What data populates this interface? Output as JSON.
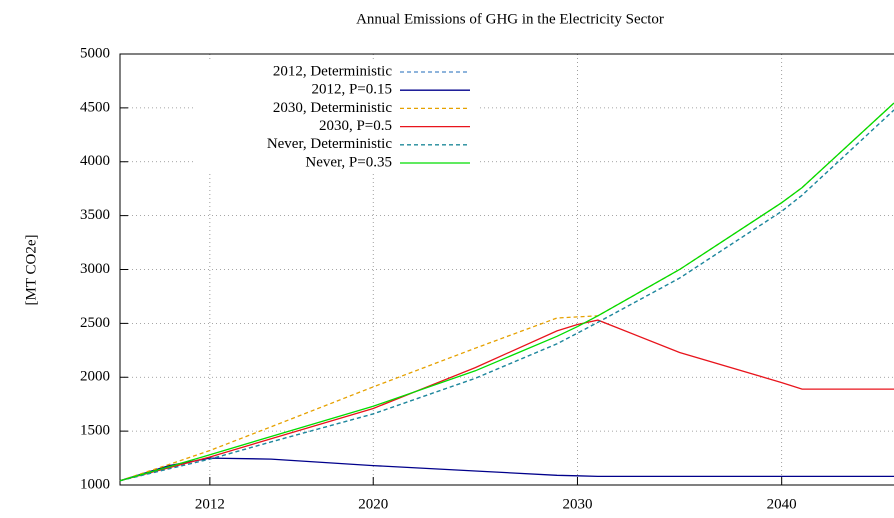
{
  "chart_data": {
    "type": "line",
    "title": "Annual Emissions of GHG in the Electricity Sector",
    "y_label": "[MT CO2e]",
    "x": [
      2007.6,
      2010,
      2012,
      2015,
      2020,
      2025,
      2029,
      2030,
      2031,
      2035,
      2040,
      2041,
      2045.5
    ],
    "xlim": [
      2007.6,
      2045.5
    ],
    "xticks": [
      2012,
      2020,
      2030,
      2040
    ],
    "ylim": [
      1000,
      5000
    ],
    "yticks": [
      1000,
      1500,
      2000,
      2500,
      3000,
      3500,
      4000,
      4500,
      5000
    ],
    "grid": true,
    "legend": "upper left",
    "series": [
      {
        "name": "2012, Deterministic",
        "color": "#4a86c8",
        "dashed": true,
        "values": [
          1040,
          1150,
          1240,
          1400,
          1660,
          1990,
          2310,
          2410,
          2510,
          2920,
          3540,
          3690,
          4480
        ]
      },
      {
        "name": "2012, P=0.15",
        "color": "#00008b",
        "dashed": false,
        "values": [
          1040,
          1180,
          1250,
          1240,
          1180,
          1130,
          1090,
          1085,
          1080,
          1080,
          1080,
          1080,
          1080
        ]
      },
      {
        "name": "2030, Deterministic",
        "color": "#e6a100",
        "dashed": true,
        "values": [
          1040,
          1190,
          1320,
          1540,
          1910,
          2270,
          2550,
          2560,
          2570,
          3000,
          3620,
          3760,
          4545
        ]
      },
      {
        "name": "2030, P=0.5",
        "color": "#e8141c",
        "dashed": false,
        "values": [
          1040,
          1160,
          1260,
          1430,
          1710,
          2090,
          2430,
          2490,
          2530,
          2230,
          1950,
          1890,
          1890
        ]
      },
      {
        "name": "Never, Deterministic",
        "color": "#1f8a9a",
        "dashed": true,
        "values": [
          1040,
          1150,
          1240,
          1400,
          1660,
          1990,
          2310,
          2410,
          2510,
          2920,
          3540,
          3690,
          4480
        ]
      },
      {
        "name": "Never, P=0.35",
        "color": "#00dd00",
        "dashed": false,
        "values": [
          1040,
          1170,
          1280,
          1450,
          1730,
          2060,
          2380,
          2470,
          2570,
          3000,
          3620,
          3760,
          4545
        ]
      }
    ]
  }
}
